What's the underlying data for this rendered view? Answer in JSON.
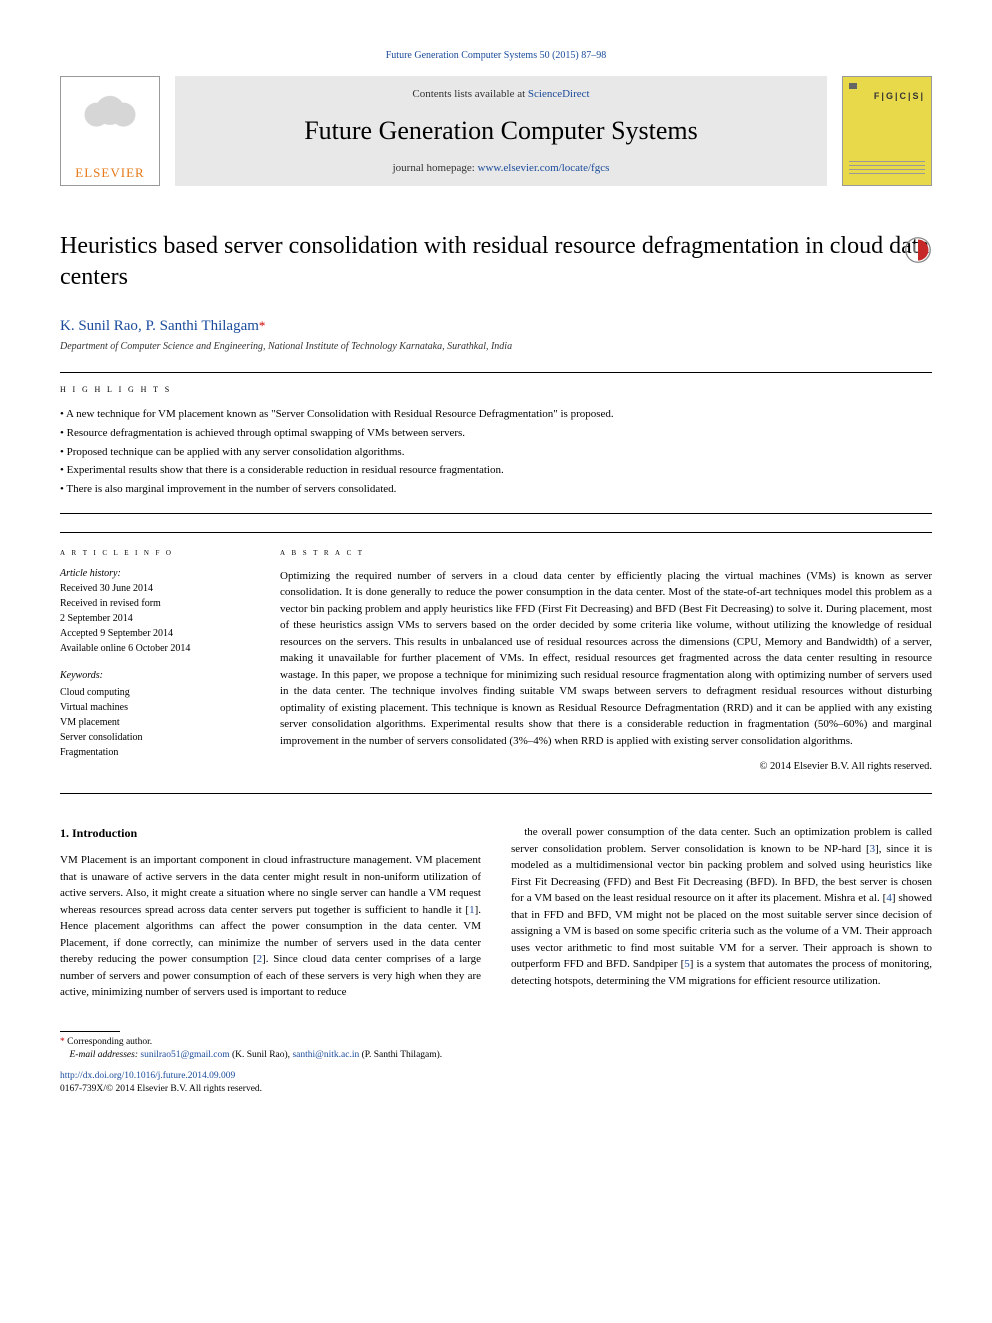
{
  "top_citation": {
    "prefix": "Future Generation Computer Systems 50 (2015) 87–98",
    "journal_link": "Future Generation Computer Systems 50 (2015) 87–98"
  },
  "header": {
    "elsevier": "ELSEVIER",
    "contents_prefix": "Contents lists available at ",
    "sciencedirect": "ScienceDirect",
    "journal_title": "Future Generation Computer Systems",
    "homepage_prefix": "journal homepage: ",
    "homepage_url": "www.elsevier.com/locate/fgcs",
    "cover_letters": "F|G|C|S|"
  },
  "title": "Heuristics based server consolidation with residual resource defragmentation in cloud data centers",
  "authors": {
    "a1": "K. Sunil Rao",
    "sep": ", ",
    "a2": "P. Santhi Thilagam",
    "corr_mark": "*"
  },
  "affiliation": "Department of Computer Science and Engineering, National Institute of Technology Karnataka, Surathkal, India",
  "highlights": {
    "heading": "h i g h l i g h t s",
    "items": [
      "A new technique for VM placement known as \"Server Consolidation with Residual Resource Defragmentation\" is proposed.",
      "Resource defragmentation is achieved through optimal swapping of VMs between servers.",
      "Proposed technique can be applied with any server consolidation algorithms.",
      "Experimental results show that there is a considerable reduction in residual resource fragmentation.",
      "There is also marginal improvement in the number of servers consolidated."
    ]
  },
  "article_info": {
    "heading": "a r t i c l e    i n f o",
    "history_label": "Article history:",
    "received": "Received 30 June 2014",
    "revised": "Received in revised form",
    "revised_date": "2 September 2014",
    "accepted": "Accepted 9 September 2014",
    "online": "Available online 6 October 2014",
    "kw_label": "Keywords:",
    "keywords": [
      "Cloud computing",
      "Virtual machines",
      "VM placement",
      "Server consolidation",
      "Fragmentation"
    ]
  },
  "abstract": {
    "heading": "a b s t r a c t",
    "text": "Optimizing the required number of servers in a cloud data center by efficiently placing the virtual machines (VMs) is known as server consolidation. It is done generally to reduce the power consumption in the data center. Most of the state-of-art techniques model this problem as a vector bin packing problem and apply heuristics like FFD (First Fit Decreasing) and BFD (Best Fit Decreasing) to solve it. During placement, most of these heuristics assign VMs to servers based on the order decided by some criteria like volume, without utilizing the knowledge of residual resources on the servers. This results in unbalanced use of residual resources across the dimensions (CPU, Memory and Bandwidth) of a server, making it unavailable for further placement of VMs. In effect, residual resources get fragmented across the data center resulting in resource wastage. In this paper, we propose a technique for minimizing such residual resource fragmentation along with optimizing number of servers used in the data center. The technique involves finding suitable VM swaps between servers to defragment residual resources without disturbing optimality of existing placement. This technique is known as Residual Resource Defragmentation (RRD) and it can be applied with any existing server consolidation algorithms. Experimental results show that there is a considerable reduction in fragmentation (50%–60%) and marginal improvement in the number of servers consolidated (3%–4%) when RRD is applied with existing server consolidation algorithms.",
    "copyright": "© 2014 Elsevier B.V. All rights reserved."
  },
  "body": {
    "section_heading": "1. Introduction",
    "p1": "VM Placement is an important component in cloud infrastructure management. VM placement that is unaware of active servers in the data center might result in non-uniform utilization of active servers. Also, it might create a situation where no single server can handle a VM request whereas resources spread across data center servers put together is sufficient to handle it [1]. Hence placement algorithms can affect the power consumption in the data center. VM Placement, if done correctly, can minimize the number of servers used in the data center thereby reducing the power consumption [2]. Since cloud data center comprises of a large number of servers and power consumption of each of these servers is very high when they are active, minimizing number of servers used is important to reduce",
    "p2": "the overall power consumption of the data center. Such an optimization problem is called server consolidation problem. Server consolidation is known to be NP-hard [3], since it is modeled as a multidimensional vector bin packing problem and solved using heuristics like First Fit Decreasing (FFD) and Best Fit Decreasing (BFD). In BFD, the best server is chosen for a VM based on the least residual resource on it after its placement. Mishra et al. [4] showed that in FFD and BFD, VM might not be placed on the most suitable server since decision of assigning a VM is based on some specific criteria such as the volume of a VM. Their approach uses vector arithmetic to find most suitable VM for a server. Their approach is shown to outperform FFD and BFD. Sandpiper [5] is a system that automates the process of monitoring, detecting hotspots, determining the VM migrations for efficient resource utilization."
  },
  "footnotes": {
    "corr_label": "Corresponding author.",
    "email_label": "E-mail addresses:",
    "email1": "sunilrao51@gmail.com",
    "email1_who": " (K. Sunil Rao), ",
    "email2": "santhi@nitk.ac.in",
    "email2_who": "(P. Santhi Thilagam).",
    "doi": "http://dx.doi.org/10.1016/j.future.2014.09.009",
    "issn": "0167-739X/© 2014 Elsevier B.V. All rights reserved."
  },
  "colors": {
    "link": "#1a4b9b",
    "elsevier_orange": "#e67817",
    "banner_bg": "#e8e8e8",
    "cover_bg": "#e8d94a"
  }
}
